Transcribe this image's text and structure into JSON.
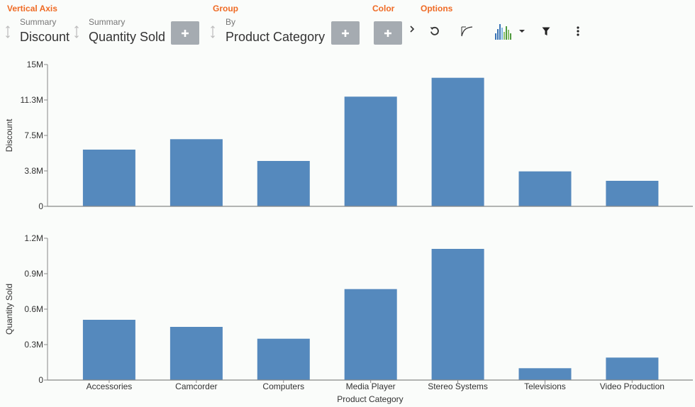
{
  "toolbar": {
    "sections": {
      "vertical_axis": "Vertical Axis",
      "group": "Group",
      "color": "Color",
      "options": "Options"
    },
    "fields": [
      {
        "sub": "Summary",
        "main": "Discount"
      },
      {
        "sub": "Summary",
        "main": "Quantity Sold"
      },
      {
        "sub": "By",
        "main": "Product Category"
      }
    ],
    "add_symbol": "+",
    "expand_symbol": "›",
    "icons": [
      "undo-icon",
      "curve-icon",
      "chart-type-icon",
      "filter-icon",
      "more-options-icon"
    ]
  },
  "colors": {
    "accent": "#ef6a24",
    "bar": "#5589bd",
    "button": "#a5abb1"
  },
  "chart_data": [
    {
      "type": "bar",
      "ylabel": "Discount",
      "ylim": [
        0,
        15
      ],
      "unit_suffix": "M",
      "yticks": [
        "0",
        "3.8M",
        "7.5M",
        "11.3M",
        "15M"
      ],
      "ytick_values": [
        0,
        3.75,
        7.5,
        11.25,
        15
      ],
      "categories": [
        "Accessories",
        "Camcorder",
        "Computers",
        "Media Player",
        "Stereo Systems",
        "Televisions",
        "Video Production"
      ],
      "values": [
        6.0,
        7.1,
        4.8,
        11.6,
        13.6,
        3.7,
        2.7
      ]
    },
    {
      "type": "bar",
      "ylabel": "Quantity Sold",
      "xlabel": "Product Category",
      "ylim": [
        0,
        1.2
      ],
      "unit_suffix": "M",
      "yticks": [
        "0",
        "0.3M",
        "0.6M",
        "0.9M",
        "1.2M"
      ],
      "ytick_values": [
        0,
        0.3,
        0.6,
        0.9,
        1.2
      ],
      "categories": [
        "Accessories",
        "Camcorder",
        "Computers",
        "Media Player",
        "Stereo Systems",
        "Televisions",
        "Video Production"
      ],
      "values": [
        0.51,
        0.45,
        0.35,
        0.77,
        1.11,
        0.1,
        0.19
      ]
    }
  ]
}
